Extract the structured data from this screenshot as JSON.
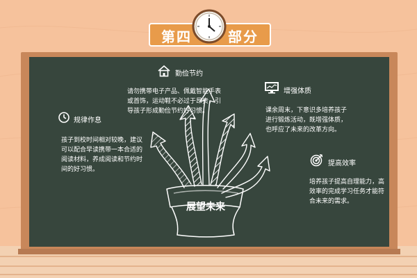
{
  "title": {
    "left": "第四",
    "right": "部分"
  },
  "center": {
    "label": "展望未来"
  },
  "sections": {
    "qinjian": {
      "title": "勤俭节约",
      "body": "请勿携带电子产品、佩戴智能手表或首饰，运动鞋不必过于昂贵，引导孩子形成勤俭节约好习惯。"
    },
    "guilv": {
      "title": "规律作息",
      "body": "孩子到校时间相对较晚，建议可以配合早读携带一本合适的阅读材料，养成阅读和节约时间的好习惯。"
    },
    "zengqiang": {
      "title": "增强体质",
      "body": "课余周末，下意识多培养孩子进行锻炼活动，既增强体质，也呼应了未来的改革方向。"
    },
    "tigao": {
      "title": "提高效率",
      "body": "培养孩子提高自理能力，高效率的完成学习任务才能符合未来的需求。"
    }
  },
  "icons": {
    "home": "home-icon",
    "clock_small": "clock-icon",
    "monitor": "monitor-chart-icon",
    "target": "target-icon",
    "wall_clock": "wall-clock-icon"
  }
}
